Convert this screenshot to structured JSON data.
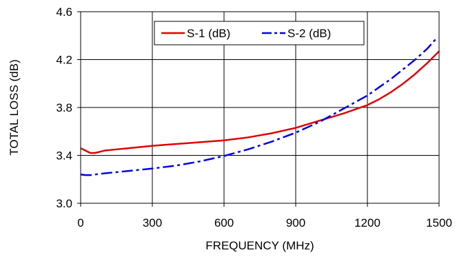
{
  "chart_data": {
    "type": "line",
    "title": "",
    "xlabel": "FREQUENCY (MHz)",
    "ylabel": "TOTAL  LOSS (dB)",
    "xlim": [
      0,
      1500
    ],
    "ylim": [
      3.0,
      4.6
    ],
    "x_ticks": [
      0,
      300,
      600,
      900,
      1200,
      1500
    ],
    "y_ticks": [
      3.0,
      3.4,
      3.8,
      4.2,
      4.6
    ],
    "x_tick_labels": [
      "0",
      "300",
      "600",
      "900",
      "1200",
      "1500"
    ],
    "y_tick_labels": [
      "3.0",
      "3.4",
      "3.8",
      "4.2",
      "4.6"
    ],
    "grid": true,
    "legend_position": "top-center",
    "series": [
      {
        "name": "S-1 (dB)",
        "color": "#e00000",
        "dash": "solid",
        "x": [
          0,
          20,
          40,
          60,
          80,
          100,
          150,
          200,
          300,
          400,
          500,
          600,
          700,
          800,
          900,
          1000,
          1100,
          1200,
          1250,
          1300,
          1350,
          1400,
          1450,
          1500
        ],
        "y": [
          3.46,
          3.44,
          3.42,
          3.42,
          3.43,
          3.44,
          3.45,
          3.46,
          3.48,
          3.495,
          3.51,
          3.525,
          3.55,
          3.585,
          3.63,
          3.69,
          3.75,
          3.82,
          3.87,
          3.93,
          4.0,
          4.08,
          4.17,
          4.27
        ]
      },
      {
        "name": "S-2 (dB)",
        "color": "#0000e6",
        "dash": "dash-dot",
        "x": [
          0,
          20,
          40,
          60,
          100,
          150,
          200,
          300,
          400,
          500,
          600,
          700,
          800,
          900,
          1000,
          1100,
          1200,
          1250,
          1300,
          1350,
          1400,
          1450,
          1490
        ],
        "y": [
          3.24,
          3.235,
          3.235,
          3.24,
          3.25,
          3.26,
          3.27,
          3.29,
          3.315,
          3.35,
          3.395,
          3.45,
          3.515,
          3.59,
          3.68,
          3.79,
          3.9,
          3.97,
          4.04,
          4.12,
          4.2,
          4.29,
          4.38
        ]
      }
    ]
  }
}
